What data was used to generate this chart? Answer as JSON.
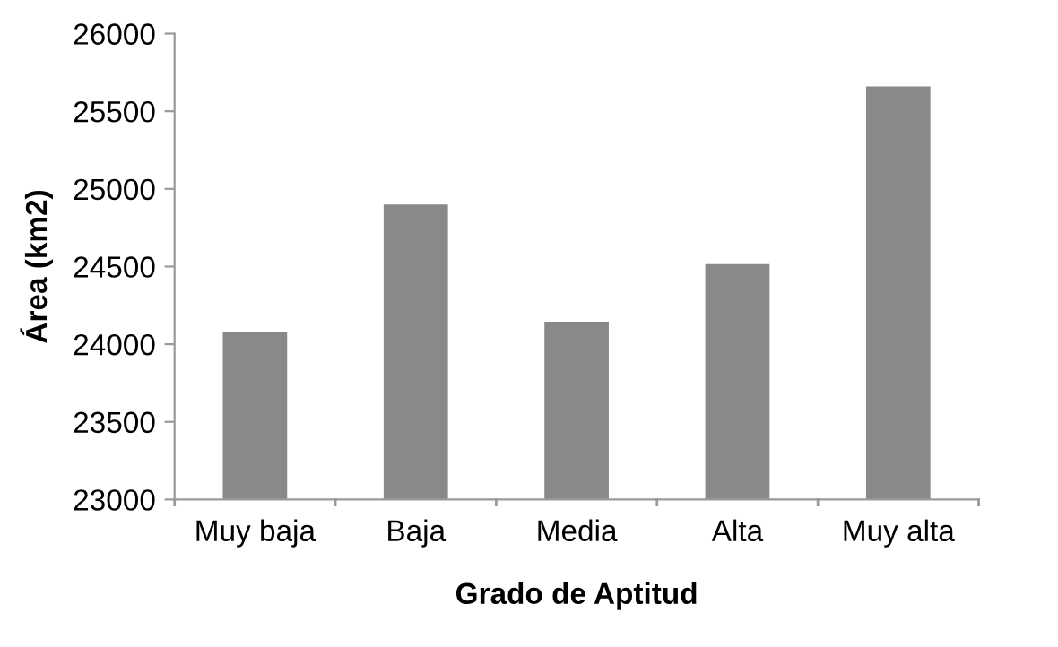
{
  "chart_data": {
    "type": "bar",
    "xlabel": "Grado de Aptitud",
    "ylabel": "Área (km2)",
    "categories": [
      "Muy baja",
      "Baja",
      "Media",
      "Alta",
      "Muy alta"
    ],
    "values": [
      24080,
      24900,
      24145,
      24515,
      25660
    ],
    "color": "#898989",
    "ylim": [
      23000,
      26000
    ],
    "yticks": [
      23000,
      23500,
      24000,
      24500,
      25000,
      25500,
      26000
    ],
    "grid": false
  }
}
